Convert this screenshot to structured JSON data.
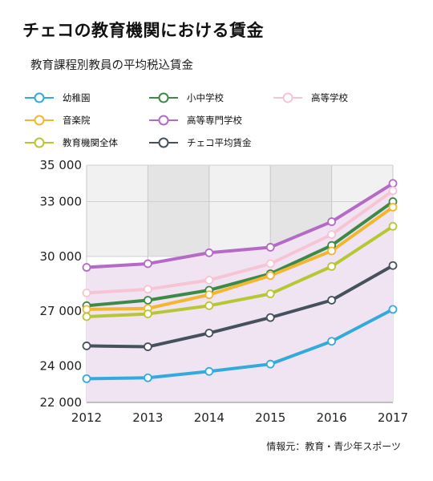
{
  "title": "チェコの教育機関における賃金",
  "subtitle": "教育課程別教員の平均税込賃金",
  "source": "情報元：教育・青少年スポーツ",
  "chart_data": {
    "type": "line",
    "x": [
      2012,
      2013,
      2014,
      2015,
      2016,
      2017
    ],
    "y_ticks": [
      "22 000",
      "24 000",
      "27 000",
      "30 000",
      "33 000",
      "35 000"
    ],
    "y_tick_values": [
      22000,
      24000,
      27000,
      30000,
      33000,
      35000
    ],
    "ylim": [
      22000,
      35000
    ],
    "series": [
      {
        "name": "幼稚園",
        "color": "#33aadd",
        "values": [
          23300,
          23350,
          23700,
          24100,
          25350,
          27100
        ]
      },
      {
        "name": "小中学校",
        "color": "#3d8a47",
        "values": [
          27300,
          27600,
          28150,
          29050,
          30600,
          33000
        ]
      },
      {
        "name": "高等学校",
        "color": "#f7c4d4",
        "values": [
          28000,
          28200,
          28700,
          29600,
          31200,
          33600
        ]
      },
      {
        "name": "音楽院",
        "color": "#f2b631",
        "values": [
          27100,
          27150,
          27900,
          28950,
          30300,
          32700
        ]
      },
      {
        "name": "高等専門学校",
        "color": "#b56ac8",
        "values": [
          29400,
          29600,
          30200,
          30500,
          31900,
          34000
        ]
      },
      {
        "name": "教育機関全体",
        "color": "#b7c733",
        "values": [
          26700,
          26850,
          27300,
          27950,
          29450,
          31650
        ]
      },
      {
        "name": "チェコ平均賃金",
        "color": "#45525e",
        "values": [
          25100,
          25050,
          25800,
          26650,
          27600,
          29500
        ]
      }
    ]
  },
  "legend_layout": [
    {
      "series": 0,
      "row": 0,
      "col": 0
    },
    {
      "series": 1,
      "row": 0,
      "col": 1
    },
    {
      "series": 2,
      "row": 0,
      "col": 2
    },
    {
      "series": 3,
      "row": 1,
      "col": 0
    },
    {
      "series": 4,
      "row": 1,
      "col": 1
    },
    {
      "series": 5,
      "row": 2,
      "col": 0
    },
    {
      "series": 6,
      "row": 2,
      "col": 1
    }
  ]
}
